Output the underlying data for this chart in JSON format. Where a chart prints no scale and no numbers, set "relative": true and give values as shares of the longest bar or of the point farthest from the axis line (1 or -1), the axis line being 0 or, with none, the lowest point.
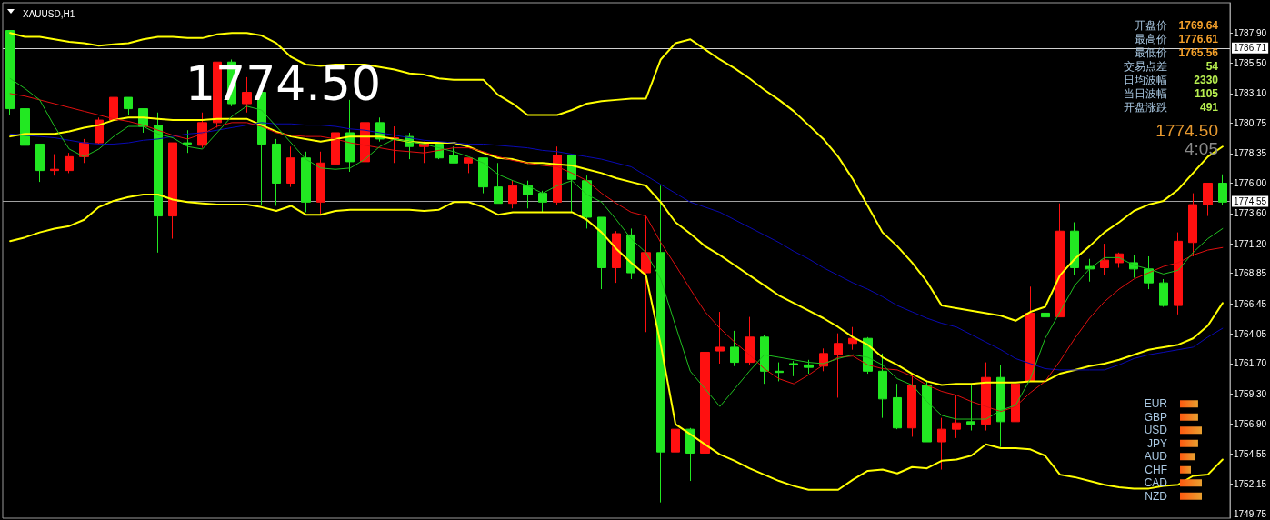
{
  "chart_data": [
    {
      "type": "candlestick",
      "title": "XAUUSD,H1",
      "categories": [
        null,
        null,
        null,
        null,
        null,
        null,
        null,
        null,
        null,
        null,
        null,
        null,
        null,
        null,
        null,
        null,
        null,
        null,
        null,
        null,
        null,
        null,
        null,
        null,
        null,
        null,
        null,
        null,
        null,
        null,
        null,
        null,
        null,
        null,
        null,
        null,
        null,
        null,
        null,
        null,
        null,
        null,
        null,
        null,
        null,
        null,
        null,
        null,
        null,
        null,
        null,
        null,
        null,
        null,
        null,
        null,
        null,
        null,
        null,
        null,
        null,
        null,
        null,
        null,
        null,
        null,
        null,
        null,
        null,
        null,
        null,
        null,
        null,
        null,
        null,
        null,
        null,
        null,
        null,
        null,
        null,
        null,
        null
      ],
      "series": [
        {
          "type": "line",
          "color": "#ffff00",
          "values": [
            1787.9,
            1787.6,
            1787.6,
            1787.4,
            1787.2,
            1787.1,
            1786.9,
            1787.0,
            1787.1,
            1787.4,
            1787.6,
            1787.6,
            1787.5,
            1787.5,
            1787.8,
            1787.9,
            1787.9,
            1787.7,
            1787.1,
            1786.0,
            1785.4,
            1785.3,
            1785.4,
            1785.4,
            1785.4,
            1785.2,
            1785.0,
            1784.7,
            1784.6,
            1784.3,
            1784.2,
            1784.2,
            1784.2,
            1783.0,
            1782.3,
            1781.4,
            1781.4,
            1781.4,
            1781.8,
            1782.3,
            1782.5,
            1782.6,
            1782.7,
            1782.7,
            1785.8,
            1787.1,
            1787.4,
            1786.6,
            1785.8,
            1785.1,
            1784.3,
            1783.4,
            1782.6,
            1781.7,
            1780.6,
            1779.5,
            1778.1,
            1776.3,
            1774.2,
            1772.1,
            1771.0,
            1769.7,
            1768.2,
            1766.3,
            1766.1,
            1765.9,
            1765.7,
            1765.5,
            1765.1,
            1765.8,
            1766.2,
            1768.7,
            1770.0,
            1771.0,
            1772.1,
            1772.9,
            1773.8,
            1774.3,
            1774.6,
            1775.5,
            1776.8,
            1778.1,
            1778.9
          ]
        },
        {
          "type": "line",
          "color": "#ffff00",
          "values": [
            1779.7,
            1779.9,
            1779.9,
            1779.9,
            1780.1,
            1780.4,
            1780.6,
            1781.0,
            1781.2,
            1781.2,
            1781.1,
            1781.0,
            1781.0,
            1781.0,
            1781.1,
            1781.1,
            1781.1,
            1780.6,
            1780.1,
            1779.7,
            1779.5,
            1779.3,
            1779.5,
            1779.7,
            1779.7,
            1779.7,
            1779.5,
            1779.3,
            1779.2,
            1779.2,
            1779.2,
            1778.9,
            1778.4,
            1778.0,
            1777.9,
            1777.6,
            1777.6,
            1777.5,
            1777.4,
            1777.1,
            1776.8,
            1776.4,
            1776.1,
            1775.8,
            1774.5,
            1772.9,
            1772.0,
            1771.0,
            1770.3,
            1769.5,
            1768.7,
            1767.9,
            1767.1,
            1766.5,
            1765.9,
            1765.3,
            1764.6,
            1763.8,
            1763.2,
            1762.2,
            1761.6,
            1760.9,
            1760.3,
            1760.0,
            1760.1,
            1760.1,
            1760.2,
            1760.2,
            1760.2,
            1760.3,
            1760.3,
            1760.9,
            1761.2,
            1761.5,
            1761.7,
            1762.0,
            1762.4,
            1762.8,
            1763.0,
            1763.2,
            1763.7,
            1764.7,
            1766.5
          ]
        },
        {
          "type": "line",
          "color": "#ffff00",
          "values": [
            1771.4,
            1771.7,
            1772.1,
            1772.4,
            1772.6,
            1773.1,
            1774.1,
            1774.6,
            1774.9,
            1775.1,
            1775.1,
            1774.7,
            1774.5,
            1774.4,
            1774.3,
            1774.3,
            1774.3,
            1774.1,
            1773.8,
            1774.2,
            1773.5,
            1773.5,
            1773.8,
            1773.9,
            1773.9,
            1773.9,
            1773.9,
            1773.9,
            1773.8,
            1773.9,
            1774.5,
            1774.5,
            1774.1,
            1773.5,
            1773.7,
            1773.7,
            1773.7,
            1773.7,
            1773.7,
            1773.1,
            1772.1,
            1770.8,
            1769.7,
            1768.7,
            1763.2,
            1756.9,
            1756.1,
            1755.3,
            1754.5,
            1754.0,
            1753.4,
            1752.9,
            1752.4,
            1752.0,
            1751.7,
            1751.7,
            1751.7,
            1752.5,
            1753.2,
            1753.3,
            1753.0,
            1753.5,
            1753.4,
            1754.0,
            1754.1,
            1754.4,
            1755.3,
            1755.0,
            1755.0,
            1754.9,
            1754.4,
            1752.9,
            1752.7,
            1752.4,
            1752.1,
            1751.9,
            1751.8,
            1751.8,
            1752.0,
            1752.1,
            1752.8,
            1752.9,
            1754.1
          ]
        },
        {
          "type": "line",
          "color": "#0a0ab4",
          "values": [
            1779.9,
            1779.8,
            1779.7,
            1779.6,
            1779.4,
            1779.2,
            1779.1,
            1779.1,
            1779.2,
            1779.4,
            1779.5,
            1779.7,
            1779.9,
            1780.0,
            1780.2,
            1780.4,
            1780.6,
            1780.8,
            1780.7,
            1780.7,
            1780.6,
            1780.6,
            1780.5,
            1780.3,
            1780.2,
            1780.0,
            1779.8,
            1779.6,
            1779.4,
            1779.3,
            1779.2,
            1779.1,
            1779.1,
            1779.0,
            1778.9,
            1778.8,
            1778.6,
            1778.5,
            1778.3,
            1778.1,
            1777.9,
            1777.6,
            1777.3,
            1776.6,
            1775.9,
            1775.2,
            1774.5,
            1774.1,
            1773.7,
            1773.1,
            1772.5,
            1771.9,
            1771.3,
            1770.6,
            1770.0,
            1769.3,
            1768.7,
            1768.1,
            1767.6,
            1767.0,
            1766.3,
            1765.8,
            1765.3,
            1764.9,
            1764.6,
            1764.0,
            1763.4,
            1762.8,
            1762.1,
            1761.7,
            1761.3,
            1761.2,
            1761.2,
            1761.2,
            1761.2,
            1761.6,
            1762.1,
            1762.4,
            1762.6,
            1762.8,
            1763.0,
            1763.8,
            1764.5
          ]
        },
        {
          "type": "line",
          "color": "#e01010",
          "values": [
            1783.1,
            1782.9,
            1782.6,
            1782.3,
            1782.0,
            1781.7,
            1781.4,
            1781.1,
            1780.9,
            1780.6,
            1780.2,
            1779.8,
            1779.5,
            1779.9,
            1780.5,
            1780.8,
            1780.8,
            1780.5,
            1780.0,
            1779.8,
            1779.7,
            1779.7,
            1779.5,
            1779.2,
            1779.0,
            1778.8,
            1778.6,
            1778.5,
            1778.4,
            1778.6,
            1778.8,
            1778.8,
            1778.5,
            1778.1,
            1777.8,
            1777.6,
            1777.4,
            1777.3,
            1776.8,
            1776.2,
            1775.2,
            1774.4,
            1773.7,
            1773.4,
            1771.3,
            1769.5,
            1767.6,
            1765.8,
            1764.5,
            1763.4,
            1762.4,
            1761.3,
            1760.5,
            1760.1,
            1760.8,
            1761.6,
            1762.2,
            1762.3,
            1761.6,
            1761.3,
            1761.2,
            1760.7,
            1760.0,
            1759.5,
            1759.2,
            1758.7,
            1758.3,
            1757.9,
            1758.3,
            1759.4,
            1760.3,
            1761.9,
            1763.7,
            1765.3,
            1766.6,
            1767.6,
            1768.4,
            1768.9,
            1769.4,
            1769.7,
            1770.3,
            1770.7,
            1770.9
          ]
        },
        {
          "type": "line",
          "color": "#20c020",
          "values": [
            1784.3,
            1783.5,
            1782.6,
            1780.5,
            1778.7,
            1778.1,
            1778.7,
            1779.7,
            1780.5,
            1780.5,
            1779.9,
            1779.6,
            1778.9,
            1778.7,
            1780.0,
            1781.3,
            1782.1,
            1781.8,
            1780.5,
            1779.2,
            1777.9,
            1777.2,
            1777.1,
            1777.2,
            1777.9,
            1778.9,
            1779.5,
            1779.3,
            1779.1,
            1778.8,
            1778.5,
            1778.1,
            1777.6,
            1776.7,
            1776.2,
            1775.8,
            1775.2,
            1775.8,
            1776.2,
            1775.1,
            1774.5,
            1773.1,
            1771.6,
            1770.5,
            1768.4,
            1764.7,
            1761.1,
            1759.7,
            1758.3,
            1759.7,
            1761.1,
            1762.4,
            1762.2,
            1762.0,
            1761.8,
            1761.7,
            1762.1,
            1762.4,
            1762.2,
            1761.6,
            1760.5,
            1760.0,
            1758.7,
            1757.6,
            1757.3,
            1757.3,
            1757.3,
            1758.0,
            1758.4,
            1760.5,
            1763.7,
            1765.8,
            1767.9,
            1769.2,
            1770.1,
            1770.1,
            1769.5,
            1769.2,
            1768.8,
            1769.1,
            1770.5,
            1771.6,
            1772.4
          ]
        },
        {
          "type": "candlestick",
          "ohlc": [
            [
              1788.1,
              1788.1,
              1781.4,
              1781.9
            ],
            [
              1781.9,
              1782.1,
              1778.3,
              1779.0
            ],
            [
              1779.1,
              1779.1,
              1776.1,
              1777.0
            ],
            [
              1777.0,
              1778.3,
              1776.6,
              1777.1
            ],
            [
              1777.0,
              1778.4,
              1776.8,
              1778.1
            ],
            [
              1778.1,
              1779.5,
              1777.6,
              1779.2
            ],
            [
              1779.2,
              1781.2,
              1779.1,
              1781.0
            ],
            [
              1781.0,
              1782.8,
              1781.0,
              1782.8
            ],
            [
              1782.8,
              1782.8,
              1781.4,
              1781.9
            ],
            [
              1781.9,
              1781.9,
              1780.0,
              1780.5
            ],
            [
              1780.6,
              1781.6,
              1770.5,
              1773.4
            ],
            [
              1773.4,
              1779.2,
              1771.6,
              1779.2
            ],
            [
              1779.2,
              1780.2,
              1778.4,
              1779.1
            ],
            [
              1779.0,
              1781.6,
              1778.8,
              1780.8
            ],
            [
              1780.8,
              1785.6,
              1780.4,
              1785.6
            ],
            [
              1785.6,
              1785.8,
              1782.1,
              1782.3
            ],
            [
              1782.3,
              1784.4,
              1781.6,
              1783.2
            ],
            [
              1783.2,
              1783.2,
              1774.3,
              1779.1
            ],
            [
              1779.1,
              1779.5,
              1774.2,
              1776.0
            ],
            [
              1776.0,
              1778.9,
              1775.7,
              1778.0
            ],
            [
              1778.0,
              1778.5,
              1773.7,
              1774.5
            ],
            [
              1774.5,
              1778.5,
              1773.5,
              1777.6
            ],
            [
              1777.5,
              1782.1,
              1777.0,
              1780.0
            ],
            [
              1780.0,
              1782.6,
              1776.9,
              1777.7
            ],
            [
              1777.7,
              1782.1,
              1777.7,
              1780.8
            ],
            [
              1780.8,
              1781.2,
              1779.3,
              1779.5
            ],
            [
              1779.5,
              1780.5,
              1777.6,
              1779.6
            ],
            [
              1779.7,
              1780.0,
              1777.9,
              1778.9
            ],
            [
              1778.9,
              1779.3,
              1777.6,
              1779.2
            ],
            [
              1779.1,
              1779.3,
              1777.9,
              1778.0
            ],
            [
              1778.2,
              1778.9,
              1777.6,
              1777.6
            ],
            [
              1777.6,
              1778.0,
              1776.8,
              1778.0
            ],
            [
              1778.0,
              1778.0,
              1775.2,
              1775.7
            ],
            [
              1775.7,
              1777.6,
              1774.4,
              1774.4
            ],
            [
              1774.4,
              1776.2,
              1774.0,
              1775.8
            ],
            [
              1775.8,
              1776.2,
              1774.0,
              1775.1
            ],
            [
              1775.2,
              1775.4,
              1773.7,
              1774.5
            ],
            [
              1774.5,
              1778.9,
              1774.3,
              1778.2
            ],
            [
              1778.2,
              1778.3,
              1773.7,
              1776.3
            ],
            [
              1776.2,
              1776.6,
              1772.4,
              1773.3
            ],
            [
              1773.3,
              1773.3,
              1767.6,
              1769.3
            ],
            [
              1769.3,
              1772.2,
              1768.1,
              1772.0
            ],
            [
              1771.9,
              1772.4,
              1768.4,
              1768.9
            ],
            [
              1768.9,
              1773.4,
              1764.2,
              1770.5
            ],
            [
              1770.5,
              1775.8,
              1750.7,
              1754.7
            ],
            [
              1754.7,
              1759.2,
              1751.3,
              1756.5
            ],
            [
              1756.5,
              1756.6,
              1752.4,
              1754.6
            ],
            [
              1754.6,
              1764.0,
              1754.6,
              1762.6
            ],
            [
              1762.7,
              1765.8,
              1761.7,
              1763.0
            ],
            [
              1763.0,
              1764.3,
              1761.5,
              1761.8
            ],
            [
              1761.8,
              1765.4,
              1761.6,
              1763.8
            ],
            [
              1763.8,
              1764.0,
              1760.1,
              1761.1
            ],
            [
              1761.1,
              1761.8,
              1760.3,
              1761.0
            ],
            [
              1761.7,
              1761.9,
              1760.7,
              1761.6
            ],
            [
              1761.6,
              1762.0,
              1760.9,
              1761.4
            ],
            [
              1761.5,
              1762.9,
              1761.1,
              1762.5
            ],
            [
              1762.4,
              1764.1,
              1759.0,
              1763.3
            ],
            [
              1763.3,
              1764.6,
              1762.8,
              1763.7
            ],
            [
              1763.7,
              1763.8,
              1760.9,
              1761.1
            ],
            [
              1761.1,
              1762.5,
              1757.4,
              1758.9
            ],
            [
              1759.0,
              1760.1,
              1756.5,
              1756.6
            ],
            [
              1756.6,
              1760.9,
              1755.9,
              1760.0
            ],
            [
              1760.0,
              1760.3,
              1755.5,
              1755.5
            ],
            [
              1755.5,
              1757.4,
              1753.3,
              1756.5
            ],
            [
              1756.5,
              1759.2,
              1755.8,
              1757.0
            ],
            [
              1757.1,
              1760.0,
              1756.4,
              1756.9
            ],
            [
              1756.9,
              1761.8,
              1756.4,
              1760.6
            ],
            [
              1760.6,
              1761.6,
              1755.1,
              1757.1
            ],
            [
              1757.1,
              1762.4,
              1755.1,
              1760.1
            ],
            [
              1760.3,
              1767.8,
              1760.3,
              1765.7
            ],
            [
              1765.7,
              1767.8,
              1763.8,
              1765.4
            ],
            [
              1765.4,
              1774.4,
              1765.4,
              1772.2
            ],
            [
              1772.2,
              1772.9,
              1768.7,
              1769.3
            ],
            [
              1769.4,
              1770.0,
              1768.2,
              1769.2
            ],
            [
              1769.3,
              1771.2,
              1768.7,
              1769.9
            ],
            [
              1769.7,
              1770.5,
              1769.3,
              1770.4
            ],
            [
              1769.7,
              1770.3,
              1768.5,
              1769.2
            ],
            [
              1769.2,
              1770.2,
              1767.6,
              1768.1
            ],
            [
              1768.1,
              1768.4,
              1766.2,
              1766.3
            ],
            [
              1766.3,
              1772.1,
              1765.6,
              1771.4
            ],
            [
              1771.3,
              1775.2,
              1770.2,
              1774.3
            ],
            [
              1774.3,
              1776.0,
              1773.4,
              1776.0
            ],
            [
              1776.0,
              1776.7,
              1774.3,
              1774.5
            ]
          ],
          "colors": [
            "#22e822",
            "#22e822",
            "#22e822",
            "#ff1010",
            "#ff1010",
            "#ff1010",
            "#ff1010",
            "#ff1010",
            "#22e822",
            "#22e822",
            "#22e822",
            "#ff1010",
            "#22e822",
            "#ff1010",
            "#ff1010",
            "#22e822",
            "#ff1010",
            "#22e822",
            "#22e822",
            "#ff1010",
            "#22e822",
            "#ff1010",
            "#ff1010",
            "#22e822",
            "#ff1010",
            "#22e822",
            "#ff1010",
            "#22e822",
            "#ff1010",
            "#22e822",
            "#22e822",
            "#ff1010",
            "#22e822",
            "#22e822",
            "#ff1010",
            "#22e822",
            "#22e822",
            "#ff1010",
            "#22e822",
            "#22e822",
            "#22e822",
            "#ff1010",
            "#22e822",
            "#ff1010",
            "#22e822",
            "#ff1010",
            "#22e822",
            "#ff1010",
            "#ff1010",
            "#22e822",
            "#ff1010",
            "#22e822",
            "#22e822",
            "#22e822",
            "#22e822",
            "#ff1010",
            "#ff1010",
            "#ff1010",
            "#22e822",
            "#22e822",
            "#22e822",
            "#ff1010",
            "#22e822",
            "#ff1010",
            "#ff1010",
            "#22e822",
            "#ff1010",
            "#22e822",
            "#ff1010",
            "#ff1010",
            "#22e822",
            "#ff1010",
            "#22e822",
            "#22e822",
            "#ff1010",
            "#ff1010",
            "#22e822",
            "#22e822",
            "#22e822",
            "#ff1010",
            "#ff1010",
            "#ff1010",
            "#22e822"
          ]
        }
      ],
      "ylim": [
        1749.45,
        1790.3
      ],
      "yticks": [
        {
          "value": 1787.9,
          "label": "1787.90"
        },
        {
          "value": 1785.5,
          "label": "1785.50"
        },
        {
          "value": 1783.1,
          "label": "1783.10"
        },
        1780.75,
        1778.35,
        {
          "value": 1776.0,
          "label": "1776.00"
        },
        {
          "value": 1773.6,
          "label": "1773.60"
        },
        {
          "value": 1771.2,
          "label": "1771.20"
        },
        1768.85,
        1766.45,
        1764.05,
        {
          "value": 1761.7,
          "label": "1761.70"
        },
        {
          "value": 1759.3,
          "label": "1759.30"
        },
        {
          "value": 1756.9,
          "label": "1756.90"
        },
        1754.55,
        1752.15,
        1749.75
      ],
      "ref_lines": [
        {
          "axis": "y",
          "value": 1786.71,
          "label": "1786.71",
          "color": "#d0d0d0"
        },
        {
          "axis": "y",
          "value": 1774.55,
          "label": "1774.55",
          "color": "#a0a0a0"
        }
      ],
      "annotations": [
        "1774.50",
        "开盘价",
        "1769.64",
        "最高价",
        "1776.61",
        "最低价",
        "1765.56",
        "交易点差",
        "54",
        "日均波幅",
        "2330",
        "当日波幅",
        "1105",
        "开盘涨跌",
        "491",
        "1774.50",
        "4:05"
      ],
      "tick_labels": "y",
      "grid": false
    },
    {
      "type": "bar",
      "orientation": "horizontal",
      "relative": true,
      "categories": [
        "EUR",
        "GBP",
        "USD",
        "JPY",
        "AUD",
        "CHF",
        "CAD",
        "NZD"
      ],
      "values": [
        0.83,
        0.83,
        1,
        0.83,
        0.67,
        0.5,
        1,
        1
      ],
      "color": "#ff5a10",
      "tick_labels": "y",
      "grid": false
    }
  ]
}
